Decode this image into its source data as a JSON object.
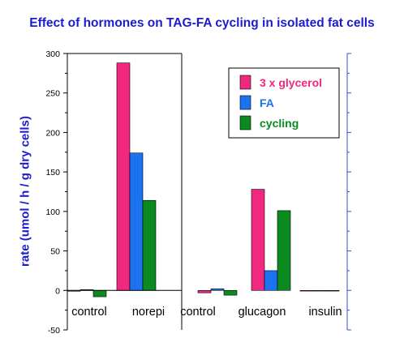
{
  "chart_data": {
    "type": "bar",
    "title": "Effect of hormones on TAG-FA cycling in isolated fat cells",
    "ylabel": "rate (umol / h / g dry cells)",
    "xlabel": "",
    "ylim": [
      -50,
      300
    ],
    "yticks": [
      -50,
      0,
      50,
      100,
      150,
      200,
      250,
      300
    ],
    "grid": false,
    "legend_position": "top-right",
    "panels": [
      {
        "name": "panel-1",
        "categories": [
          "control",
          "norepi"
        ]
      },
      {
        "name": "panel-2",
        "categories": [
          "control",
          "glucagon",
          "insulin"
        ]
      }
    ],
    "categories": [
      "control",
      "norepi",
      "control",
      "glucagon",
      "insulin"
    ],
    "series": [
      {
        "name": "3 x glycerol",
        "color": "#f0287f",
        "values": [
          -1,
          288,
          -3,
          128,
          0
        ]
      },
      {
        "name": "FA",
        "color": "#1c73ef",
        "values": [
          1,
          174,
          2,
          25,
          0
        ]
      },
      {
        "name": "cycling",
        "color": "#0b8a1f",
        "values": [
          -8,
          114,
          -6,
          101,
          0
        ]
      }
    ]
  }
}
